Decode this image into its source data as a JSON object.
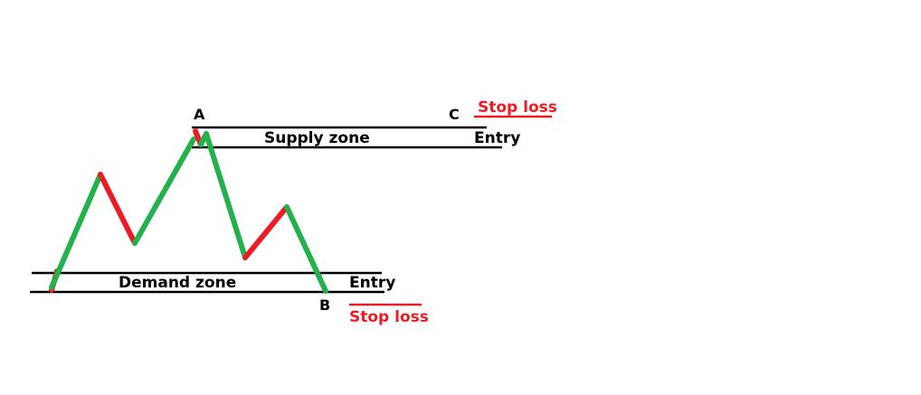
{
  "zones": {
    "supply": {
      "label": "Supply zone"
    },
    "demand": {
      "label": "Demand zone"
    }
  },
  "points": {
    "a": "A",
    "b": "B",
    "c": "C"
  },
  "trades": {
    "sell": {
      "entry": "Entry",
      "stop_loss": "Stop loss"
    },
    "buy": {
      "entry": "Entry",
      "stop_loss": "Stop loss"
    }
  },
  "colors": {
    "up_leg": "#22b14c",
    "down_leg": "#ed1c24",
    "zone_line": "#000000",
    "stop_loss": "#ed1c24"
  }
}
